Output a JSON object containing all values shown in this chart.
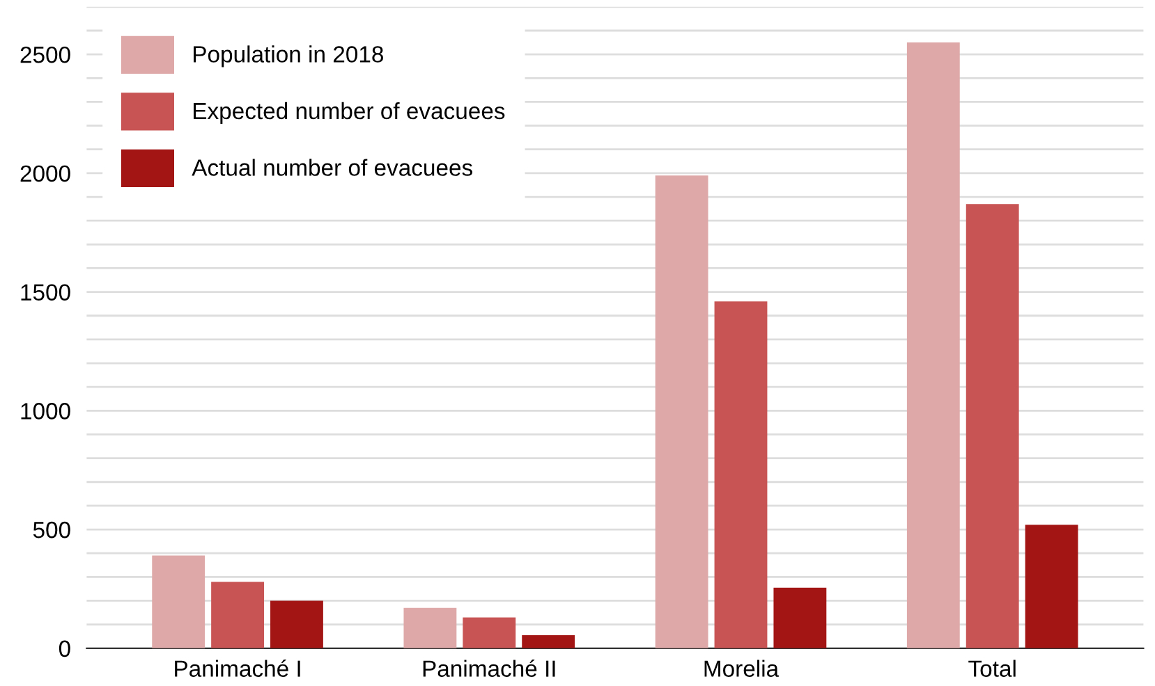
{
  "chart_data": {
    "type": "bar",
    "categories": [
      "Panimaché I",
      "Panimaché II",
      "Morelia",
      "Total"
    ],
    "series": [
      {
        "name": "Population in 2018",
        "color": "#dea8a8",
        "values": [
          390,
          170,
          1990,
          2550
        ]
      },
      {
        "name": "Expected number of evacuees",
        "color": "#c85454",
        "values": [
          280,
          130,
          1460,
          1870
        ]
      },
      {
        "name": "Actual number of evacuees",
        "color": "#a31515",
        "values": [
          200,
          55,
          255,
          520
        ]
      }
    ],
    "ylim": [
      0,
      2700
    ],
    "yticks": [
      0,
      {
        "value": 100,
        "label": null
      },
      {
        "value": 200,
        "label": null
      },
      {
        "value": 300,
        "label": null
      },
      {
        "value": 400,
        "label": null
      },
      500,
      {
        "value": 600,
        "label": null
      },
      {
        "value": 700,
        "label": null
      },
      {
        "value": 800,
        "label": null
      },
      {
        "value": 900,
        "label": null
      },
      1000,
      {
        "value": 1100,
        "label": null
      },
      {
        "value": 1200,
        "label": null
      },
      {
        "value": 1300,
        "label": null
      },
      {
        "value": 1400,
        "label": null
      },
      1500,
      {
        "value": 1600,
        "label": null
      },
      {
        "value": 1700,
        "label": null
      },
      {
        "value": 1800,
        "label": null
      },
      {
        "value": 1900,
        "label": null
      },
      2000,
      {
        "value": 2100,
        "label": null
      },
      {
        "value": 2200,
        "label": null
      },
      {
        "value": 2300,
        "label": null
      },
      {
        "value": 2400,
        "label": null
      },
      2500,
      {
        "value": 2600,
        "label": null
      },
      {
        "value": 2700,
        "label": null
      }
    ],
    "grid": "y",
    "legend": "top left"
  }
}
